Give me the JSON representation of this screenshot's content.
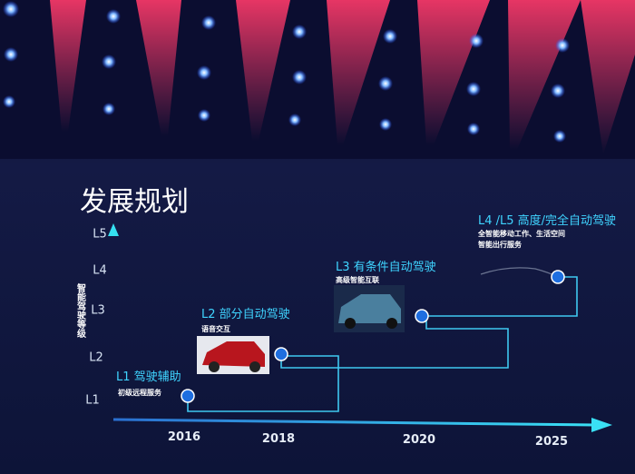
{
  "title": "发展规划",
  "y_axis_label": "智能驾驶等级",
  "levels": [
    "L5",
    "L4",
    "L3",
    "L2",
    "L1"
  ],
  "years": [
    "2016",
    "2018",
    "2020",
    "2025"
  ],
  "stages": [
    {
      "title": "L1 驾驶辅助",
      "details": [
        "初级远程服务"
      ]
    },
    {
      "title": "L2 部分自动驾驶",
      "details": [
        "语音交互"
      ]
    },
    {
      "title": "L3 有条件自动驾驶",
      "details": [
        "高级智能互联"
      ]
    },
    {
      "title": "L4 /L5 高度/完全自动驾驶",
      "details": [
        "全智能移动工作、生活空间",
        "智能出行服务"
      ]
    }
  ]
}
